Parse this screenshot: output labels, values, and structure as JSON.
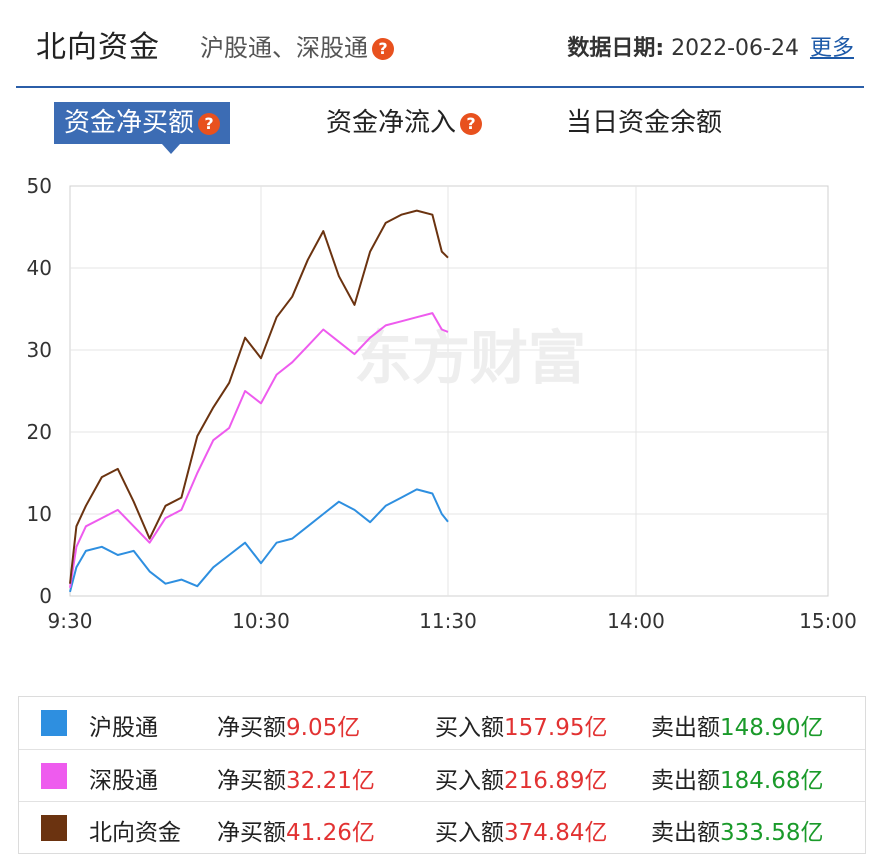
{
  "header": {
    "title": "北向资金",
    "subtitle": "沪股通、深股通",
    "help_glyph": "?",
    "date_label": "数据日期:",
    "date_value": "2022-06-24",
    "more_link": "更多"
  },
  "tabs": [
    {
      "label": "资金净买额",
      "active": true,
      "has_help": true
    },
    {
      "label": "资金净流入",
      "active": false,
      "has_help": true
    },
    {
      "label": "当日资金余额",
      "active": false,
      "has_help": false
    }
  ],
  "watermark": "东方财富",
  "colors": {
    "accent": "#3c6cb4",
    "hgt": "#2e8fe0",
    "sgt": "#ee5bee",
    "north": "#6b3310",
    "red": "#e23232",
    "green": "#1a9a2a",
    "help_icon": "#e8511e"
  },
  "chart_data": {
    "type": "line",
    "x_ticks": [
      "9:30",
      "10:30",
      "11:30",
      "14:00",
      "15:00"
    ],
    "y_ticks": [
      "0",
      "10",
      "20",
      "30",
      "40",
      "50"
    ],
    "ylim": [
      0,
      50
    ],
    "series": [
      {
        "name": "沪股通",
        "color": "#2e8fe0",
        "x": [
          "9:30",
          "9:32",
          "9:35",
          "9:40",
          "9:45",
          "9:50",
          "9:55",
          "10:00",
          "10:05",
          "10:10",
          "10:15",
          "10:20",
          "10:25",
          "10:30",
          "10:35",
          "10:40",
          "10:45",
          "10:50",
          "10:55",
          "11:00",
          "11:05",
          "11:10",
          "11:15",
          "11:20",
          "11:25",
          "11:28",
          "11:30"
        ],
        "values": [
          0.5,
          3.5,
          5.5,
          6.0,
          5.0,
          5.5,
          3.0,
          1.5,
          2.0,
          1.2,
          3.5,
          5.0,
          6.5,
          4.0,
          6.5,
          7.0,
          8.5,
          10.0,
          11.5,
          10.5,
          9.0,
          11.0,
          12.0,
          13.0,
          12.5,
          10.0,
          9.05
        ]
      },
      {
        "name": "深股通",
        "color": "#ee5bee",
        "x": [
          "9:30",
          "9:32",
          "9:35",
          "9:40",
          "9:45",
          "9:50",
          "9:55",
          "10:00",
          "10:05",
          "10:10",
          "10:15",
          "10:20",
          "10:25",
          "10:30",
          "10:35",
          "10:40",
          "10:45",
          "10:50",
          "10:55",
          "11:00",
          "11:05",
          "11:10",
          "11:15",
          "11:20",
          "11:25",
          "11:28",
          "11:30"
        ],
        "values": [
          1.0,
          6.0,
          8.5,
          9.5,
          10.5,
          8.5,
          6.5,
          9.5,
          10.5,
          15.0,
          19.0,
          20.5,
          25.0,
          23.5,
          27.0,
          28.5,
          30.5,
          32.5,
          31.0,
          29.5,
          31.5,
          33.0,
          33.5,
          34.0,
          34.5,
          32.5,
          32.21
        ]
      },
      {
        "name": "北向资金",
        "color": "#6b3310",
        "x": [
          "9:30",
          "9:32",
          "9:35",
          "9:40",
          "9:45",
          "9:50",
          "9:55",
          "10:00",
          "10:05",
          "10:10",
          "10:15",
          "10:20",
          "10:25",
          "10:30",
          "10:35",
          "10:40",
          "10:45",
          "10:50",
          "10:55",
          "11:00",
          "11:05",
          "11:10",
          "11:15",
          "11:20",
          "11:25",
          "11:28",
          "11:30"
        ],
        "values": [
          1.5,
          8.5,
          11.0,
          14.5,
          15.5,
          11.5,
          7.0,
          11.0,
          12.0,
          19.5,
          23.0,
          26.0,
          31.5,
          29.0,
          34.0,
          36.5,
          41.0,
          44.5,
          39.0,
          35.5,
          42.0,
          45.5,
          46.5,
          47.0,
          46.5,
          42.0,
          41.26
        ]
      }
    ]
  },
  "legend": {
    "rows": [
      {
        "name": "沪股通",
        "color": "#2e8fe0",
        "net_label": "净买额",
        "net_value": "9.05亿",
        "buy_label": "买入额",
        "buy_value": "157.95亿",
        "sell_label": "卖出额",
        "sell_value": "148.90亿"
      },
      {
        "name": "深股通",
        "color": "#ee5bee",
        "net_label": "净买额",
        "net_value": "32.21亿",
        "buy_label": "买入额",
        "buy_value": "216.89亿",
        "sell_label": "卖出额",
        "sell_value": "184.68亿"
      },
      {
        "name": "北向资金",
        "color": "#6b3310",
        "net_label": "净买额",
        "net_value": "41.26亿",
        "buy_label": "买入额",
        "buy_value": "374.84亿",
        "sell_label": "卖出额",
        "sell_value": "333.58亿"
      }
    ]
  }
}
